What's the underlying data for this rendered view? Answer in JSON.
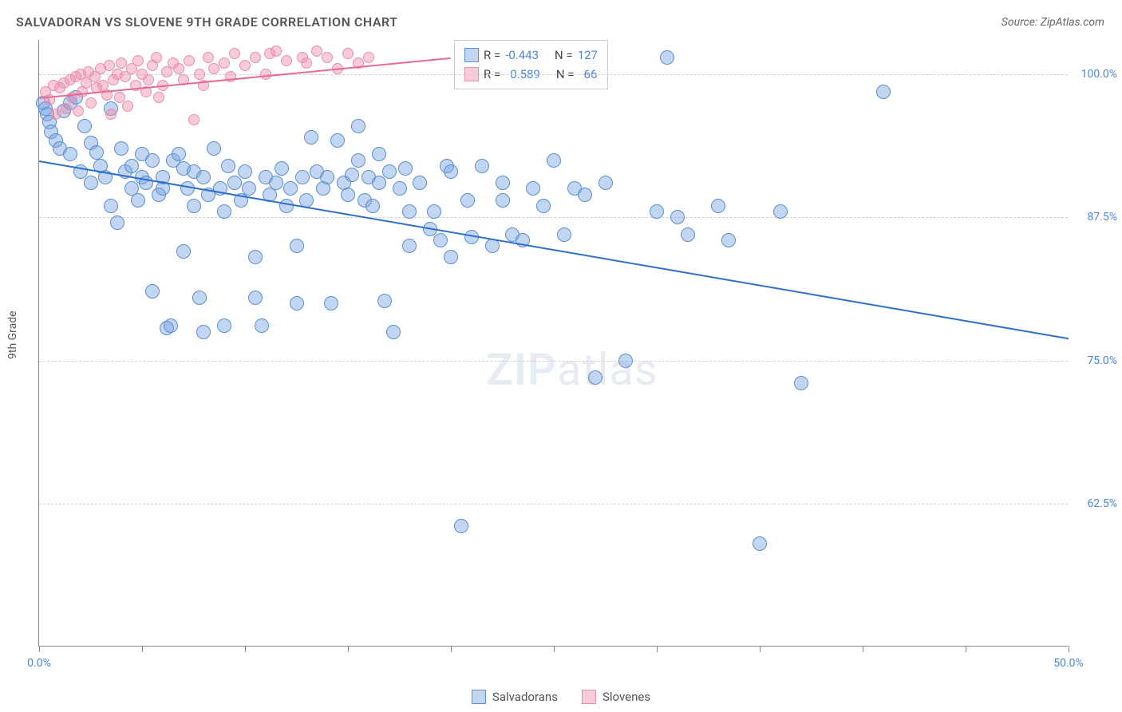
{
  "title": "SALVADORAN VS SLOVENE 9TH GRADE CORRELATION CHART",
  "source": "Source: ZipAtlas.com",
  "y_axis_label": "9th Grade",
  "watermark": {
    "part1": "ZIP",
    "part2": "atlas"
  },
  "chart": {
    "type": "scatter",
    "xlim": [
      0,
      50
    ],
    "ylim": [
      50,
      103
    ],
    "x_ticks": [
      0,
      5,
      10,
      15,
      20,
      25,
      30,
      35,
      40,
      45,
      50
    ],
    "x_tick_labels": {
      "0": "0.0%",
      "50": "50.0%"
    },
    "y_ticks": [
      62.5,
      75.0,
      87.5,
      100.0
    ],
    "y_tick_labels": [
      "62.5%",
      "75.0%",
      "87.5%",
      "100.0%"
    ],
    "grid_color": "#d0d0d0",
    "background_color": "#ffffff",
    "series": [
      {
        "name": "Salvadorans",
        "color_fill": "rgba(120,165,225,0.45)",
        "color_stroke": "#5a8fd0",
        "marker_radius": 9,
        "R": "-0.443",
        "N": "127",
        "trend": {
          "x1": 0,
          "y1": 92.5,
          "x2": 50,
          "y2": 77.0,
          "color": "#2e6fc9",
          "width": 2
        },
        "points": [
          [
            0.2,
            97.5
          ],
          [
            0.3,
            97.0
          ],
          [
            0.4,
            96.5
          ],
          [
            0.5,
            95.8
          ],
          [
            0.6,
            95.0
          ],
          [
            0.8,
            94.2
          ],
          [
            1.0,
            93.5
          ],
          [
            1.2,
            96.8
          ],
          [
            1.5,
            97.5
          ],
          [
            1.5,
            93.0
          ],
          [
            1.8,
            98.0
          ],
          [
            2.0,
            91.5
          ],
          [
            2.2,
            95.5
          ],
          [
            2.5,
            94.0
          ],
          [
            2.5,
            90.5
          ],
          [
            2.8,
            93.2
          ],
          [
            3.0,
            92.0
          ],
          [
            3.2,
            91.0
          ],
          [
            3.5,
            97.0
          ],
          [
            3.5,
            88.5
          ],
          [
            3.8,
            87.0
          ],
          [
            4.0,
            93.5
          ],
          [
            4.2,
            91.5
          ],
          [
            4.5,
            90.0
          ],
          [
            4.5,
            92.0
          ],
          [
            4.8,
            89.0
          ],
          [
            5.0,
            93.0
          ],
          [
            5.0,
            91.0
          ],
          [
            5.2,
            90.5
          ],
          [
            5.5,
            92.5
          ],
          [
            5.5,
            81.0
          ],
          [
            5.8,
            89.5
          ],
          [
            6.0,
            91.0
          ],
          [
            6.0,
            90.0
          ],
          [
            6.2,
            77.8
          ],
          [
            6.4,
            78.0
          ],
          [
            6.5,
            92.5
          ],
          [
            6.8,
            93.0
          ],
          [
            7.0,
            91.8
          ],
          [
            7.0,
            84.5
          ],
          [
            7.2,
            90.0
          ],
          [
            7.5,
            88.5
          ],
          [
            7.5,
            91.5
          ],
          [
            7.8,
            80.5
          ],
          [
            8.0,
            91.0
          ],
          [
            8.0,
            77.5
          ],
          [
            8.2,
            89.5
          ],
          [
            8.5,
            93.5
          ],
          [
            8.8,
            90.0
          ],
          [
            9.0,
            88.0
          ],
          [
            9.0,
            78.0
          ],
          [
            9.2,
            92.0
          ],
          [
            9.5,
            90.5
          ],
          [
            9.8,
            89.0
          ],
          [
            10.0,
            91.5
          ],
          [
            10.2,
            90.0
          ],
          [
            10.5,
            84.0
          ],
          [
            10.5,
            80.5
          ],
          [
            10.8,
            78.0
          ],
          [
            11.0,
            91.0
          ],
          [
            11.2,
            89.5
          ],
          [
            11.5,
            90.5
          ],
          [
            11.8,
            91.8
          ],
          [
            12.0,
            88.5
          ],
          [
            12.2,
            90.0
          ],
          [
            12.5,
            85.0
          ],
          [
            12.5,
            80.0
          ],
          [
            12.8,
            91.0
          ],
          [
            13.0,
            89.0
          ],
          [
            13.2,
            94.5
          ],
          [
            13.5,
            91.5
          ],
          [
            13.8,
            90.0
          ],
          [
            14.0,
            91.0
          ],
          [
            14.2,
            80.0
          ],
          [
            14.5,
            94.2
          ],
          [
            14.8,
            90.5
          ],
          [
            15.0,
            89.5
          ],
          [
            15.2,
            91.2
          ],
          [
            15.5,
            95.5
          ],
          [
            15.5,
            92.5
          ],
          [
            15.8,
            89.0
          ],
          [
            16.0,
            91.0
          ],
          [
            16.2,
            88.5
          ],
          [
            16.5,
            93.0
          ],
          [
            16.5,
            90.5
          ],
          [
            16.8,
            80.2
          ],
          [
            17.0,
            91.5
          ],
          [
            17.2,
            77.5
          ],
          [
            17.5,
            90.0
          ],
          [
            17.8,
            91.8
          ],
          [
            18.0,
            88.0
          ],
          [
            18.0,
            85.0
          ],
          [
            18.5,
            90.5
          ],
          [
            19.0,
            86.5
          ],
          [
            19.2,
            88.0
          ],
          [
            19.5,
            85.5
          ],
          [
            19.8,
            92.0
          ],
          [
            20.0,
            91.5
          ],
          [
            20.0,
            84.0
          ],
          [
            20.5,
            60.5
          ],
          [
            20.8,
            89.0
          ],
          [
            21.0,
            85.8
          ],
          [
            21.5,
            92.0
          ],
          [
            22.0,
            85.0
          ],
          [
            22.5,
            90.5
          ],
          [
            22.5,
            89.0
          ],
          [
            23.0,
            86.0
          ],
          [
            23.5,
            85.5
          ],
          [
            24.0,
            90.0
          ],
          [
            24.5,
            88.5
          ],
          [
            25.0,
            92.5
          ],
          [
            25.5,
            86.0
          ],
          [
            26.0,
            90.0
          ],
          [
            26.5,
            89.5
          ],
          [
            27.0,
            73.5
          ],
          [
            27.5,
            90.5
          ],
          [
            28.5,
            75.0
          ],
          [
            30.0,
            88.0
          ],
          [
            31.0,
            87.5
          ],
          [
            31.5,
            86.0
          ],
          [
            33.0,
            88.5
          ],
          [
            33.5,
            85.5
          ],
          [
            35.0,
            59.0
          ],
          [
            36.0,
            88.0
          ],
          [
            37.0,
            73.0
          ],
          [
            41.0,
            98.5
          ],
          [
            30.5,
            101.5
          ]
        ]
      },
      {
        "name": "Slovenes",
        "color_fill": "rgba(240,140,170,0.45)",
        "color_stroke": "#e88fab",
        "marker_radius": 7,
        "R": "0.589",
        "N": "66",
        "trend": {
          "x1": 0,
          "y1": 98.0,
          "x2": 20,
          "y2": 101.5,
          "color": "#e86a92",
          "width": 2
        },
        "points": [
          [
            0.3,
            98.5
          ],
          [
            0.5,
            97.8
          ],
          [
            0.7,
            99.0
          ],
          [
            0.8,
            96.5
          ],
          [
            1.0,
            98.8
          ],
          [
            1.2,
            99.2
          ],
          [
            1.3,
            97.0
          ],
          [
            1.5,
            99.5
          ],
          [
            1.6,
            98.0
          ],
          [
            1.8,
            99.8
          ],
          [
            1.9,
            96.8
          ],
          [
            2.0,
            100.0
          ],
          [
            2.1,
            98.5
          ],
          [
            2.3,
            99.2
          ],
          [
            2.4,
            100.2
          ],
          [
            2.5,
            97.5
          ],
          [
            2.7,
            99.8
          ],
          [
            2.8,
            98.8
          ],
          [
            3.0,
            100.5
          ],
          [
            3.1,
            99.0
          ],
          [
            3.3,
            98.2
          ],
          [
            3.4,
            100.8
          ],
          [
            3.5,
            96.5
          ],
          [
            3.6,
            99.5
          ],
          [
            3.8,
            100.0
          ],
          [
            3.9,
            98.0
          ],
          [
            4.0,
            101.0
          ],
          [
            4.2,
            99.8
          ],
          [
            4.3,
            97.2
          ],
          [
            4.5,
            100.5
          ],
          [
            4.7,
            99.0
          ],
          [
            4.8,
            101.2
          ],
          [
            5.0,
            100.0
          ],
          [
            5.2,
            98.5
          ],
          [
            5.3,
            99.5
          ],
          [
            5.5,
            100.8
          ],
          [
            5.7,
            101.5
          ],
          [
            5.8,
            98.0
          ],
          [
            6.0,
            99.0
          ],
          [
            6.2,
            100.2
          ],
          [
            6.5,
            101.0
          ],
          [
            6.8,
            100.5
          ],
          [
            7.0,
            99.5
          ],
          [
            7.3,
            101.2
          ],
          [
            7.5,
            96.0
          ],
          [
            7.8,
            100.0
          ],
          [
            8.0,
            99.0
          ],
          [
            8.2,
            101.5
          ],
          [
            8.5,
            100.5
          ],
          [
            9.0,
            101.0
          ],
          [
            9.3,
            99.8
          ],
          [
            9.5,
            101.8
          ],
          [
            10.0,
            100.8
          ],
          [
            10.5,
            101.5
          ],
          [
            11.0,
            100.0
          ],
          [
            11.2,
            101.8
          ],
          [
            11.5,
            102.0
          ],
          [
            12.0,
            101.2
          ],
          [
            12.8,
            101.5
          ],
          [
            13.0,
            101.0
          ],
          [
            13.5,
            102.0
          ],
          [
            14.0,
            101.5
          ],
          [
            14.5,
            100.5
          ],
          [
            15.0,
            101.8
          ],
          [
            15.5,
            101.0
          ],
          [
            16.0,
            101.5
          ]
        ]
      }
    ]
  },
  "legend_labels": {
    "R_prefix": "R = ",
    "N_prefix": "N = "
  },
  "bottom_legend": [
    "Salvadorans",
    "Slovenes"
  ]
}
